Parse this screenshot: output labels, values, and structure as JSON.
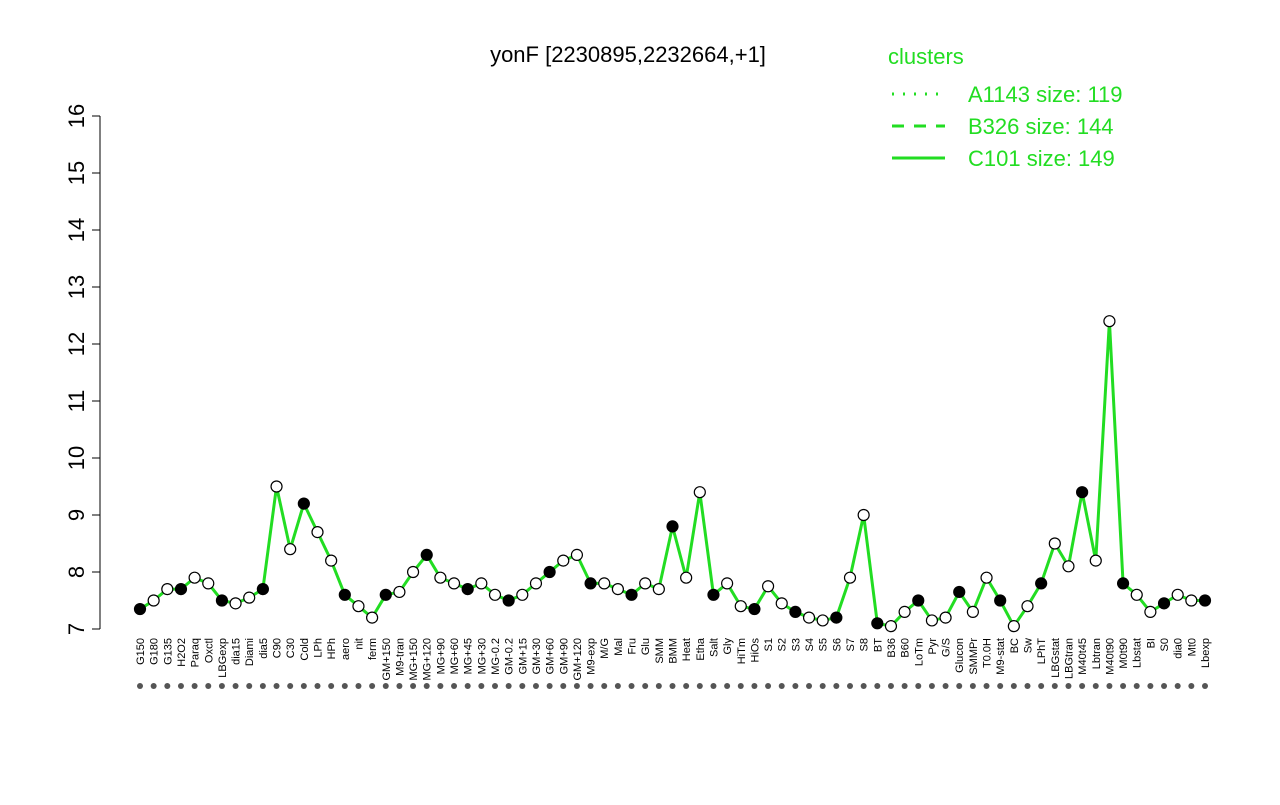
{
  "chart_data": {
    "type": "line",
    "title": "yonF [2230895,2232664,+1]",
    "categories": [
      "G150",
      "G180",
      "G135",
      "H2O2",
      "Paraq",
      "Oxctl",
      "LBGexp",
      "dia15",
      "Diami",
      "dia5",
      "C90",
      "C30",
      "Cold",
      "LPh",
      "HPh",
      "aero",
      "nit",
      "ferm",
      "GM+150",
      "M9-tran",
      "MG+150",
      "MG+120",
      "MG+90",
      "MG+60",
      "MG+45",
      "MG+30",
      "MG-0.2",
      "GM-0.2",
      "GM+15",
      "GM+30",
      "GM+60",
      "GM+90",
      "GM+120",
      "M9-exp",
      "M/G",
      "Mal",
      "Fru",
      "Glu",
      "SMM",
      "BMM",
      "Heat",
      "Etha",
      "Salt",
      "Gly",
      "HiTm",
      "HiOs",
      "S1",
      "S2",
      "S3",
      "S4",
      "S5",
      "S6",
      "S7",
      "S8",
      "BT",
      "B36",
      "B60",
      "LoTm",
      "Pyr",
      "G/S",
      "Glucon",
      "SMMPr",
      "T0.0H",
      "M9-stat",
      "BC",
      "Sw",
      "LPhT",
      "LBGstat",
      "LBGtran",
      "M40t45",
      "Lbtran",
      "M40t90",
      "M0t90",
      "Lbstat",
      "BI",
      "S0",
      "dia0",
      "Mt0",
      "Lbexp"
    ],
    "series": [
      {
        "name": "C101 size: 149",
        "color": "#22dd22",
        "values": [
          7.35,
          7.5,
          7.7,
          7.7,
          7.9,
          7.8,
          7.5,
          7.45,
          7.55,
          7.7,
          9.5,
          8.4,
          9.2,
          8.7,
          8.2,
          7.6,
          7.4,
          7.2,
          7.6,
          7.65,
          8.0,
          8.3,
          7.9,
          7.8,
          7.7,
          7.8,
          7.6,
          7.5,
          7.6,
          7.8,
          8.0,
          8.2,
          8.3,
          7.8,
          7.8,
          7.7,
          7.6,
          7.8,
          7.7,
          8.8,
          7.9,
          9.4,
          7.6,
          7.8,
          7.4,
          7.35,
          7.75,
          7.45,
          7.3,
          7.2,
          7.15,
          7.2,
          7.9,
          9.0,
          7.1,
          7.05,
          7.3,
          7.5,
          7.15,
          7.2,
          7.65,
          7.3,
          7.9,
          7.5,
          7.05,
          7.4,
          7.8,
          8.5,
          8.1,
          9.4,
          8.2,
          12.4,
          7.8,
          7.6,
          7.3,
          7.45,
          7.6,
          7.5,
          7.5
        ]
      }
    ],
    "legend_title": "clusters",
    "legend_entries": [
      "A1143 size: 119",
      "B326 size: 144"
    ],
    "ylim": [
      7,
      16
    ],
    "yticks": [
      7,
      8,
      9,
      10,
      11,
      12,
      13,
      14,
      15,
      16
    ]
  }
}
